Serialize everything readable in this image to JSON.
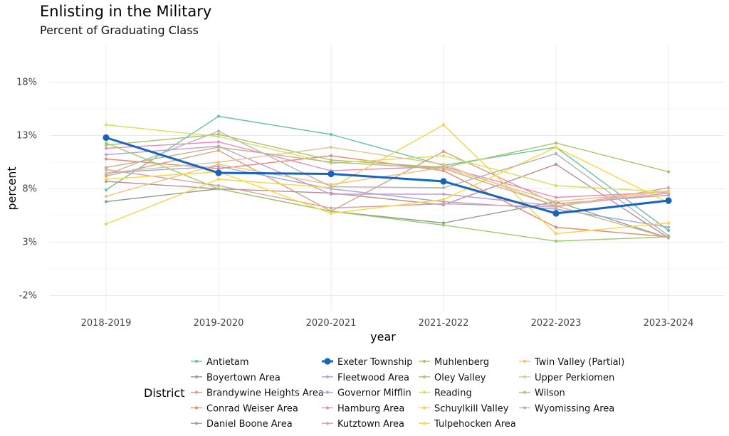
{
  "chart_data": {
    "type": "line",
    "title": "Enlisting in the Military",
    "subtitle": "Percent of Graduating Class",
    "xlabel": "year",
    "ylabel": "percent",
    "categories": [
      "2018-2019",
      "2019-2020",
      "2020-2021",
      "2021-2022",
      "2022-2023",
      "2023-2024"
    ],
    "y_ticks": [
      -2,
      3,
      8,
      13,
      18
    ],
    "y_tick_labels": [
      "-2%",
      "3%",
      "8%",
      "13%",
      "18%"
    ],
    "ylim": [
      -3.5,
      21.5
    ],
    "grid": true,
    "legend_title": "District",
    "legend_placement": "bottom",
    "highlight_series": "Exeter Township",
    "series": [
      {
        "name": "Antietam",
        "color": "#66c2a5",
        "values": [
          7.9,
          14.8,
          13.1,
          10.2,
          11.9,
          4.1
        ]
      },
      {
        "name": "Boyertown Area",
        "color": "#8da08b",
        "values": [
          6.8,
          8.0,
          5.9,
          4.8,
          6.8,
          3.4
        ]
      },
      {
        "name": "Brandywine Heights Area",
        "color": "#d9a07f",
        "values": [
          9.2,
          11.6,
          5.9,
          11.5,
          6.6,
          7.4
        ]
      },
      {
        "name": "Conrad Weiser Area",
        "color": "#e8896e",
        "values": [
          10.8,
          9.9,
          11.1,
          9.7,
          4.4,
          3.5
        ]
      },
      {
        "name": "Daniel Boone Area",
        "color": "#b59393",
        "values": [
          8.7,
          8.0,
          7.6,
          6.5,
          10.3,
          3.4
        ]
      },
      {
        "name": "Exeter Township",
        "color": "#1565c0",
        "values": [
          12.8,
          9.5,
          9.4,
          8.7,
          5.7,
          6.9
        ]
      },
      {
        "name": "Fleetwood Area",
        "color": "#9fa8da",
        "values": [
          9.5,
          10.1,
          8.0,
          6.8,
          6.1,
          4.4
        ]
      },
      {
        "name": "Governor Mifflin",
        "color": "#c39bd3",
        "values": [
          11.2,
          12.0,
          7.5,
          7.5,
          6.4,
          7.6
        ]
      },
      {
        "name": "Hamburg Area",
        "color": "#e78ac3",
        "values": [
          11.8,
          12.4,
          9.7,
          10.1,
          7.2,
          7.7
        ]
      },
      {
        "name": "Kutztown Area",
        "color": "#d9a0a8",
        "values": [
          9.8,
          8.3,
          6.2,
          6.6,
          6.3,
          8.1
        ]
      },
      {
        "name": "Muhlenberg",
        "color": "#a6c36a",
        "values": [
          12.1,
          13.1,
          10.7,
          10.0,
          12.3,
          9.6
        ]
      },
      {
        "name": "Oley Valley",
        "color": "#9ccc65",
        "values": [
          12.3,
          8.0,
          5.9,
          4.6,
          3.1,
          3.5
        ]
      },
      {
        "name": "Reading",
        "color": "#d4e157",
        "values": [
          14.0,
          12.9,
          10.4,
          11.1,
          8.3,
          7.7
        ]
      },
      {
        "name": "Schuylkill Valley",
        "color": "#f5d547",
        "values": [
          4.7,
          8.9,
          8.1,
          14.0,
          3.8,
          4.8
        ]
      },
      {
        "name": "Tulpehocken Area",
        "color": "#fdd835",
        "values": [
          8.9,
          9.6,
          5.7,
          7.0,
          11.9,
          6.7
        ]
      },
      {
        "name": "Twin Valley (Partial)",
        "color": "#f0c27b",
        "values": [
          7.3,
          10.3,
          8.4,
          10.0,
          6.8,
          7.8
        ]
      },
      {
        "name": "Upper Perkiomen",
        "color": "#e5c494",
        "values": [
          9.5,
          10.5,
          11.9,
          10.3,
          6.4,
          7.8
        ]
      },
      {
        "name": "Wilson",
        "color": "#c4b48a",
        "values": [
          10.0,
          11.9,
          10.5,
          9.9,
          6.4,
          3.4
        ]
      },
      {
        "name": "Wyomissing Area",
        "color": "#b3b3b3",
        "values": [
          9.3,
          13.4,
          8.2,
          8.1,
          11.3,
          3.6
        ]
      }
    ]
  }
}
